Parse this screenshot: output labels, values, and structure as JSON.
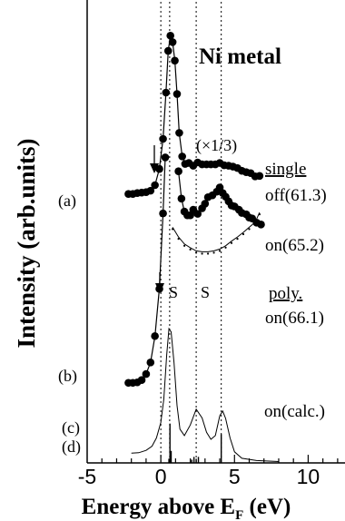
{
  "chart_data": {
    "type": "line",
    "title": "Ni metal",
    "xlabel": "Energy above E",
    "xlabel_sub": "F",
    "xlabel_unit": " (eV)",
    "ylabel": "Intensity (arb.units)",
    "xlim": [
      -5,
      12.5
    ],
    "ylim": [
      0,
      100
    ],
    "xticks": [
      -5,
      0,
      5,
      10
    ],
    "yticks_shown": false,
    "grid": false,
    "reference_lines_x": [
      0,
      0.6,
      2.4,
      4.1
    ],
    "series": [
      {
        "id": "a_off",
        "style": "dots",
        "points": [
          [
            -2.2,
            58.1
          ],
          [
            -1.9,
            58.1
          ],
          [
            -1.6,
            58.3
          ],
          [
            -1.3,
            58.4
          ],
          [
            -1.0,
            58.5
          ],
          [
            -0.7,
            58.8
          ],
          [
            -0.4,
            60.0
          ],
          [
            -0.1,
            63.5
          ],
          [
            0.15,
            70.0
          ],
          [
            0.35,
            80.0
          ],
          [
            0.5,
            89.0
          ],
          [
            0.65,
            92.3
          ],
          [
            0.8,
            90.9
          ],
          [
            0.95,
            86.9
          ],
          [
            1.1,
            79.7
          ],
          [
            1.25,
            71.3
          ],
          [
            1.45,
            66.2
          ],
          [
            1.65,
            64.6
          ],
          [
            1.9,
            64.8
          ],
          [
            2.2,
            64.2
          ],
          [
            2.5,
            64.9
          ],
          [
            2.8,
            64.5
          ],
          [
            3.1,
            64.5
          ],
          [
            3.4,
            64.5
          ],
          [
            3.7,
            64.5
          ],
          [
            4.0,
            64.8
          ],
          [
            4.3,
            64.3
          ],
          [
            4.6,
            64.2
          ],
          [
            4.9,
            64.0
          ],
          [
            5.2,
            63.7
          ],
          [
            5.5,
            63.1
          ],
          [
            5.8,
            62.8
          ],
          [
            6.1,
            62.6
          ],
          [
            6.4,
            61.9
          ],
          [
            6.7,
            62.0
          ]
        ]
      },
      {
        "id": "a_on",
        "style": "dots",
        "points": [
          [
            1.2,
            63.0
          ],
          [
            1.4,
            57.1
          ],
          [
            1.6,
            54.3
          ],
          [
            1.8,
            53.5
          ],
          [
            2.0,
            53.5
          ],
          [
            2.2,
            54.7
          ],
          [
            2.5,
            53.8
          ],
          [
            2.8,
            55.0
          ],
          [
            3.0,
            56.0
          ],
          [
            3.2,
            57.4
          ],
          [
            3.5,
            57.8
          ],
          [
            3.8,
            58.6
          ],
          [
            4.0,
            59.5
          ],
          [
            4.2,
            58.3
          ],
          [
            4.4,
            57.5
          ],
          [
            4.6,
            56.5
          ],
          [
            4.8,
            55.6
          ],
          [
            5.0,
            55.4
          ],
          [
            5.3,
            54.7
          ],
          [
            5.5,
            54.0
          ],
          [
            5.8,
            53.7
          ],
          [
            6.0,
            53.0
          ],
          [
            6.2,
            52.8
          ],
          [
            6.5,
            51.9
          ],
          [
            6.8,
            51.5
          ]
        ]
      },
      {
        "id": "poly",
        "style": "line+dots",
        "points": [
          [
            0.8,
            50.9
          ],
          [
            1.2,
            48.8
          ],
          [
            1.6,
            47.3
          ],
          [
            2.0,
            46.5
          ],
          [
            2.4,
            45.8
          ],
          [
            2.8,
            45.6
          ],
          [
            3.2,
            45.6
          ],
          [
            3.6,
            45.8
          ],
          [
            4.0,
            46.2
          ],
          [
            4.4,
            46.9
          ],
          [
            4.8,
            47.9
          ],
          [
            5.2,
            48.8
          ],
          [
            5.6,
            49.8
          ],
          [
            6.0,
            50.9
          ],
          [
            6.4,
            52.0
          ],
          [
            6.7,
            54.1
          ]
        ]
      },
      {
        "id": "b",
        "style": "dots",
        "points": [
          [
            -2.2,
            17.3
          ],
          [
            -1.9,
            17.3
          ],
          [
            -1.6,
            17.4
          ],
          [
            -1.3,
            17.9
          ],
          [
            -1.0,
            19.2
          ],
          [
            -0.7,
            21.7
          ],
          [
            -0.4,
            27.4
          ],
          [
            -0.1,
            37.6
          ],
          [
            0.15,
            53.9
          ],
          [
            0.3,
            66.0
          ]
        ]
      },
      {
        "id": "c",
        "style": "line",
        "points": [
          [
            -2.0,
            2.1
          ],
          [
            -1.5,
            2.2
          ],
          [
            -1.0,
            2.7
          ],
          [
            -0.6,
            3.6
          ],
          [
            -0.3,
            5.4
          ],
          [
            0.0,
            8.7
          ],
          [
            0.2,
            13.7
          ],
          [
            0.4,
            23.3
          ],
          [
            0.55,
            29.0
          ],
          [
            0.7,
            28.3
          ],
          [
            0.9,
            21.6
          ],
          [
            1.1,
            12.4
          ],
          [
            1.3,
            7.3
          ],
          [
            1.6,
            5.9
          ],
          [
            2.0,
            8.2
          ],
          [
            2.4,
            11.6
          ],
          [
            2.8,
            9.7
          ],
          [
            3.1,
            6.6
          ],
          [
            3.4,
            5.1
          ],
          [
            3.7,
            5.9
          ],
          [
            4.0,
            10.2
          ],
          [
            4.2,
            11.2
          ],
          [
            4.4,
            9.6
          ],
          [
            4.7,
            5.4
          ],
          [
            5.0,
            2.4
          ],
          [
            5.5,
            1.0
          ],
          [
            6.5,
            0.5
          ],
          [
            8.0,
            0.3
          ]
        ]
      },
      {
        "id": "d",
        "style": "sticks",
        "points": [
          [
            0.55,
            0.9
          ],
          [
            0.62,
            8.5
          ],
          [
            0.7,
            2.6
          ],
          [
            2.1,
            0.7
          ],
          [
            2.25,
            1.3
          ],
          [
            2.4,
            0.9
          ],
          [
            2.55,
            1.3
          ],
          [
            4.1,
            6.2
          ]
        ]
      }
    ],
    "curve_labels": [
      "(a)",
      "(b)",
      "(c)",
      "(d)"
    ],
    "right_labels": {
      "single": "single",
      "off": "off(61.3)",
      "on": "on(65.2)",
      "poly": "poly.",
      "on_poly": "on(66.1)",
      "calc": "on(calc.)"
    },
    "annotations": {
      "scale": "(×1/3)",
      "s1": "S",
      "s2": "S"
    }
  }
}
